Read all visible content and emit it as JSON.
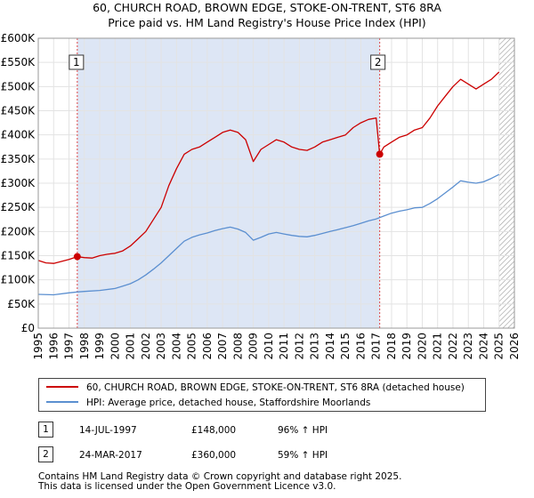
{
  "header": {
    "title_line1": "60, CHURCH ROAD, BROWN EDGE, STOKE-ON-TRENT, ST6 8RA",
    "title_line2": "Price paid vs. HM Land Registry's House Price Index (HPI)"
  },
  "chart_data": {
    "type": "line",
    "xlim": [
      1995,
      2026
    ],
    "ylim": [
      0,
      600000
    ],
    "x_ticks": [
      1995,
      1996,
      1997,
      1998,
      1999,
      2000,
      2001,
      2002,
      2003,
      2004,
      2005,
      2006,
      2007,
      2008,
      2009,
      2010,
      2011,
      2012,
      2013,
      2014,
      2015,
      2016,
      2017,
      2018,
      2019,
      2020,
      2021,
      2022,
      2023,
      2024,
      2025,
      2026
    ],
    "y_ticks": [
      {
        "value": 0,
        "label": "£0"
      },
      {
        "value": 50000,
        "label": "£50K"
      },
      {
        "value": 100000,
        "label": "£100K"
      },
      {
        "value": 150000,
        "label": "£150K"
      },
      {
        "value": 200000,
        "label": "£200K"
      },
      {
        "value": 250000,
        "label": "£250K"
      },
      {
        "value": 300000,
        "label": "£300K"
      },
      {
        "value": 350000,
        "label": "£350K"
      },
      {
        "value": 400000,
        "label": "£400K"
      },
      {
        "value": 450000,
        "label": "£450K"
      },
      {
        "value": 500000,
        "label": "£500K"
      },
      {
        "value": 550000,
        "label": "£550K"
      },
      {
        "value": 600000,
        "label": "£600K"
      }
    ],
    "grid": true,
    "shaded_regions": [
      {
        "from": 1997.54,
        "to": 2017.23,
        "color": "#dde6f5"
      }
    ],
    "hatched_region": {
      "from": 2025.0,
      "to": 2026
    }
  },
  "series": [
    {
      "name": "60, CHURCH ROAD, BROWN EDGE, STOKE-ON-TRENT, ST6 8RA (detached house)",
      "color": "#cc0000",
      "points": [
        [
          1995.0,
          140000
        ],
        [
          1995.5,
          135000
        ],
        [
          1996.0,
          134000
        ],
        [
          1996.5,
          138000
        ],
        [
          1997.0,
          142000
        ],
        [
          1997.54,
          148000
        ],
        [
          1998.0,
          146000
        ],
        [
          1998.5,
          145000
        ],
        [
          1999.0,
          150000
        ],
        [
          1999.5,
          153000
        ],
        [
          2000.0,
          155000
        ],
        [
          2000.5,
          160000
        ],
        [
          2001.0,
          170000
        ],
        [
          2001.5,
          185000
        ],
        [
          2002.0,
          200000
        ],
        [
          2002.5,
          225000
        ],
        [
          2003.0,
          250000
        ],
        [
          2003.5,
          295000
        ],
        [
          2004.0,
          330000
        ],
        [
          2004.5,
          360000
        ],
        [
          2005.0,
          370000
        ],
        [
          2005.5,
          375000
        ],
        [
          2006.0,
          385000
        ],
        [
          2006.5,
          395000
        ],
        [
          2007.0,
          405000
        ],
        [
          2007.5,
          410000
        ],
        [
          2008.0,
          405000
        ],
        [
          2008.5,
          390000
        ],
        [
          2009.0,
          345000
        ],
        [
          2009.5,
          370000
        ],
        [
          2010.0,
          380000
        ],
        [
          2010.5,
          390000
        ],
        [
          2011.0,
          385000
        ],
        [
          2011.5,
          375000
        ],
        [
          2012.0,
          370000
        ],
        [
          2012.5,
          368000
        ],
        [
          2013.0,
          375000
        ],
        [
          2013.5,
          385000
        ],
        [
          2014.0,
          390000
        ],
        [
          2014.5,
          395000
        ],
        [
          2015.0,
          400000
        ],
        [
          2015.5,
          415000
        ],
        [
          2016.0,
          425000
        ],
        [
          2016.5,
          432000
        ],
        [
          2017.0,
          435000
        ],
        [
          2017.23,
          360000
        ],
        [
          2017.5,
          375000
        ],
        [
          2018.0,
          385000
        ],
        [
          2018.5,
          395000
        ],
        [
          2019.0,
          400000
        ],
        [
          2019.5,
          410000
        ],
        [
          2020.0,
          415000
        ],
        [
          2020.5,
          435000
        ],
        [
          2021.0,
          460000
        ],
        [
          2021.5,
          480000
        ],
        [
          2022.0,
          500000
        ],
        [
          2022.5,
          515000
        ],
        [
          2023.0,
          505000
        ],
        [
          2023.5,
          495000
        ],
        [
          2024.0,
          505000
        ],
        [
          2024.5,
          515000
        ],
        [
          2025.0,
          530000
        ]
      ]
    },
    {
      "name": "HPI: Average price, detached house, Staffordshire Moorlands",
      "color": "#5b8fd0",
      "points": [
        [
          1995.0,
          70000
        ],
        [
          1996.0,
          69000
        ],
        [
          1997.0,
          73000
        ],
        [
          1997.54,
          75000
        ],
        [
          1998.0,
          76000
        ],
        [
          1999.0,
          78000
        ],
        [
          2000.0,
          82000
        ],
        [
          2000.5,
          87000
        ],
        [
          2001.0,
          92000
        ],
        [
          2001.5,
          100000
        ],
        [
          2002.0,
          110000
        ],
        [
          2002.5,
          122000
        ],
        [
          2003.0,
          135000
        ],
        [
          2003.5,
          150000
        ],
        [
          2004.0,
          165000
        ],
        [
          2004.5,
          180000
        ],
        [
          2005.0,
          188000
        ],
        [
          2005.5,
          193000
        ],
        [
          2006.0,
          197000
        ],
        [
          2006.5,
          202000
        ],
        [
          2007.0,
          206000
        ],
        [
          2007.5,
          209000
        ],
        [
          2008.0,
          205000
        ],
        [
          2008.5,
          198000
        ],
        [
          2009.0,
          182000
        ],
        [
          2009.5,
          188000
        ],
        [
          2010.0,
          195000
        ],
        [
          2010.5,
          198000
        ],
        [
          2011.0,
          195000
        ],
        [
          2011.5,
          192000
        ],
        [
          2012.0,
          190000
        ],
        [
          2012.5,
          189000
        ],
        [
          2013.0,
          192000
        ],
        [
          2013.5,
          196000
        ],
        [
          2014.0,
          200000
        ],
        [
          2014.5,
          204000
        ],
        [
          2015.0,
          208000
        ],
        [
          2015.5,
          212000
        ],
        [
          2016.0,
          217000
        ],
        [
          2016.5,
          222000
        ],
        [
          2017.0,
          226000
        ],
        [
          2017.5,
          232000
        ],
        [
          2018.0,
          238000
        ],
        [
          2018.5,
          242000
        ],
        [
          2019.0,
          245000
        ],
        [
          2019.5,
          249000
        ],
        [
          2020.0,
          250000
        ],
        [
          2020.5,
          258000
        ],
        [
          2021.0,
          268000
        ],
        [
          2021.5,
          280000
        ],
        [
          2022.0,
          292000
        ],
        [
          2022.5,
          305000
        ],
        [
          2023.0,
          302000
        ],
        [
          2023.5,
          300000
        ],
        [
          2024.0,
          303000
        ],
        [
          2024.5,
          310000
        ],
        [
          2025.0,
          318000
        ]
      ]
    }
  ],
  "legend": {
    "items": [
      {
        "label": "60, CHURCH ROAD, BROWN EDGE, STOKE-ON-TRENT, ST6 8RA (detached house)",
        "color": "#cc0000"
      },
      {
        "label": "HPI: Average price, detached house, Staffordshire Moorlands",
        "color": "#5b8fd0"
      }
    ]
  },
  "sales": [
    {
      "marker": "1",
      "date": "14-JUL-1997",
      "year": 1997.54,
      "price_value": 148000,
      "price": "£148,000",
      "hpi": "96% ↑ HPI"
    },
    {
      "marker": "2",
      "date": "24-MAR-2017",
      "year": 2017.23,
      "price_value": 360000,
      "price": "£360,000",
      "hpi": "59% ↑ HPI"
    }
  ],
  "footer": {
    "line1": "Contains HM Land Registry data © Crown copyright and database right 2025.",
    "line2": "This data is licensed under the Open Government Licence v3.0."
  }
}
